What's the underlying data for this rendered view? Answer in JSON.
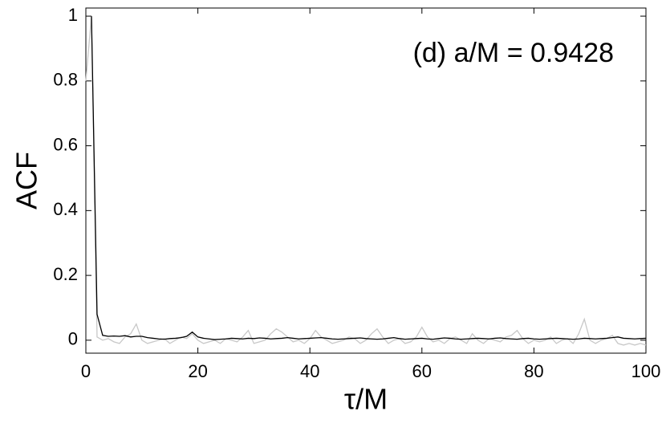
{
  "chart_data": {
    "type": "line",
    "annotation": "(d) a/M = 0.9428",
    "xlabel": "τ/M",
    "ylabel": "ACF",
    "x": [
      0,
      1,
      2,
      3,
      4,
      5,
      6,
      7,
      8,
      9,
      10,
      11,
      12,
      13,
      14,
      15,
      16,
      17,
      18,
      19,
      20,
      21,
      22,
      23,
      24,
      25,
      26,
      27,
      28,
      29,
      30,
      31,
      32,
      33,
      34,
      35,
      36,
      37,
      38,
      39,
      40,
      41,
      42,
      43,
      44,
      45,
      46,
      47,
      48,
      49,
      50,
      51,
      52,
      53,
      54,
      55,
      56,
      57,
      58,
      59,
      60,
      61,
      62,
      63,
      64,
      65,
      66,
      67,
      68,
      69,
      70,
      71,
      72,
      73,
      74,
      75,
      76,
      77,
      78,
      79,
      80,
      81,
      82,
      83,
      84,
      85,
      86,
      87,
      88,
      89,
      90,
      91,
      92,
      93,
      94,
      95,
      96,
      97,
      98,
      99,
      100
    ],
    "series": [
      {
        "color": "#c8c8c8",
        "values": [
          0.8,
          1.0,
          0.01,
          0.0,
          0.005,
          -0.005,
          -0.01,
          0.01,
          0.02,
          0.05,
          0.0,
          -0.01,
          -0.005,
          0.0,
          0.005,
          -0.01,
          0.0,
          0.01,
          0.005,
          0.02,
          0.0,
          -0.01,
          -0.005,
          0.0,
          -0.01,
          0.005,
          0.0,
          -0.005,
          0.01,
          0.03,
          -0.01,
          -0.005,
          0.0,
          0.02,
          0.035,
          0.025,
          0.01,
          -0.005,
          0.0,
          -0.01,
          0.005,
          0.03,
          0.01,
          0.0,
          -0.01,
          -0.005,
          0.0,
          0.01,
          0.005,
          -0.01,
          0.0,
          0.02,
          0.035,
          0.01,
          -0.01,
          0.0,
          0.005,
          -0.01,
          -0.005,
          0.01,
          0.04,
          0.01,
          -0.005,
          0.0,
          -0.01,
          0.005,
          0.01,
          0.0,
          -0.01,
          0.02,
          0.0,
          -0.01,
          0.005,
          0.0,
          -0.005,
          0.01,
          0.015,
          0.03,
          0.005,
          -0.01,
          0.0,
          -0.005,
          0.0,
          0.01,
          -0.01,
          0.0,
          0.005,
          -0.01,
          0.02,
          0.065,
          0.0,
          -0.01,
          0.0,
          0.005,
          0.015,
          -0.01,
          -0.015,
          -0.01,
          -0.015,
          -0.01,
          -0.015
        ]
      },
      {
        "color": "#000000",
        "values": [
          null,
          1.0,
          0.08,
          0.015,
          0.012,
          0.013,
          0.012,
          0.014,
          0.01,
          0.012,
          0.012,
          0.008,
          0.006,
          0.004,
          0.003,
          0.005,
          0.006,
          0.008,
          0.012,
          0.025,
          0.01,
          0.006,
          0.004,
          0.002,
          0.003,
          0.004,
          0.006,
          0.005,
          0.004,
          0.006,
          0.005,
          0.007,
          0.006,
          0.004,
          0.005,
          0.006,
          0.008,
          0.006,
          0.004,
          0.005,
          0.006,
          0.007,
          0.008,
          0.006,
          0.004,
          0.003,
          0.004,
          0.005,
          0.006,
          0.007,
          0.005,
          0.004,
          0.003,
          0.004,
          0.006,
          0.008,
          0.005,
          0.003,
          0.004,
          0.005,
          0.006,
          0.004,
          0.003,
          0.005,
          0.007,
          0.006,
          0.004,
          0.003,
          0.004,
          0.005,
          0.006,
          0.005,
          0.004,
          0.006,
          0.007,
          0.005,
          0.004,
          0.003,
          0.005,
          0.006,
          0.004,
          0.003,
          0.004,
          0.005,
          0.006,
          0.005,
          0.004,
          0.003,
          0.004,
          0.006,
          0.005,
          0.004,
          0.005,
          0.006,
          0.008,
          0.01,
          0.006,
          0.005,
          0.004,
          0.005,
          0.006
        ]
      }
    ],
    "xlim": [
      0,
      100
    ],
    "ylim": [
      -0.04,
      1.025
    ],
    "xticks": [
      0,
      20,
      40,
      60,
      80,
      100
    ],
    "yticks": [
      0,
      0.2,
      0.4,
      0.6,
      0.8,
      1
    ]
  }
}
